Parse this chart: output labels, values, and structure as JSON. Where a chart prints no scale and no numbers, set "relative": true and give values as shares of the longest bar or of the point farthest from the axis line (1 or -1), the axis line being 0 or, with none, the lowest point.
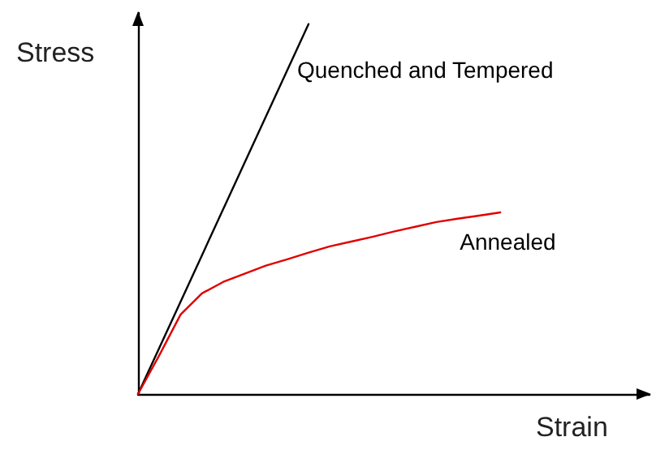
{
  "chart_data": {
    "type": "line",
    "relative": true,
    "xlabel": "Strain",
    "ylabel": "Stress",
    "grid": false,
    "legend": false,
    "marker": "none",
    "line_style": "solid",
    "categories": [
      null,
      null,
      null,
      null,
      null,
      null,
      null,
      null,
      null,
      null,
      null,
      null,
      null,
      null,
      null,
      null,
      null,
      null,
      null,
      null,
      null,
      null,
      null,
      null,
      null
    ],
    "series": [
      {
        "name": "Quenched and Tempered",
        "color": "#000000",
        "values": [
          0,
          0.125,
          0.25,
          0.375,
          0.5,
          0.625,
          0.75,
          0.875,
          1,
          null,
          null,
          null,
          null,
          null,
          null,
          null,
          null,
          null,
          null,
          null,
          null,
          null,
          null,
          null,
          null
        ]
      },
      {
        "name": "Annealed",
        "color": "#e00000",
        "values": [
          0,
          0.105,
          0.215,
          0.272,
          0.303,
          0.325,
          0.347,
          0.364,
          0.382,
          0.399,
          0.412,
          0.425,
          0.439,
          0.452,
          0.465,
          0.474,
          0.482,
          0.491,
          null,
          null,
          null,
          null,
          null,
          null,
          null
        ]
      }
    ]
  }
}
